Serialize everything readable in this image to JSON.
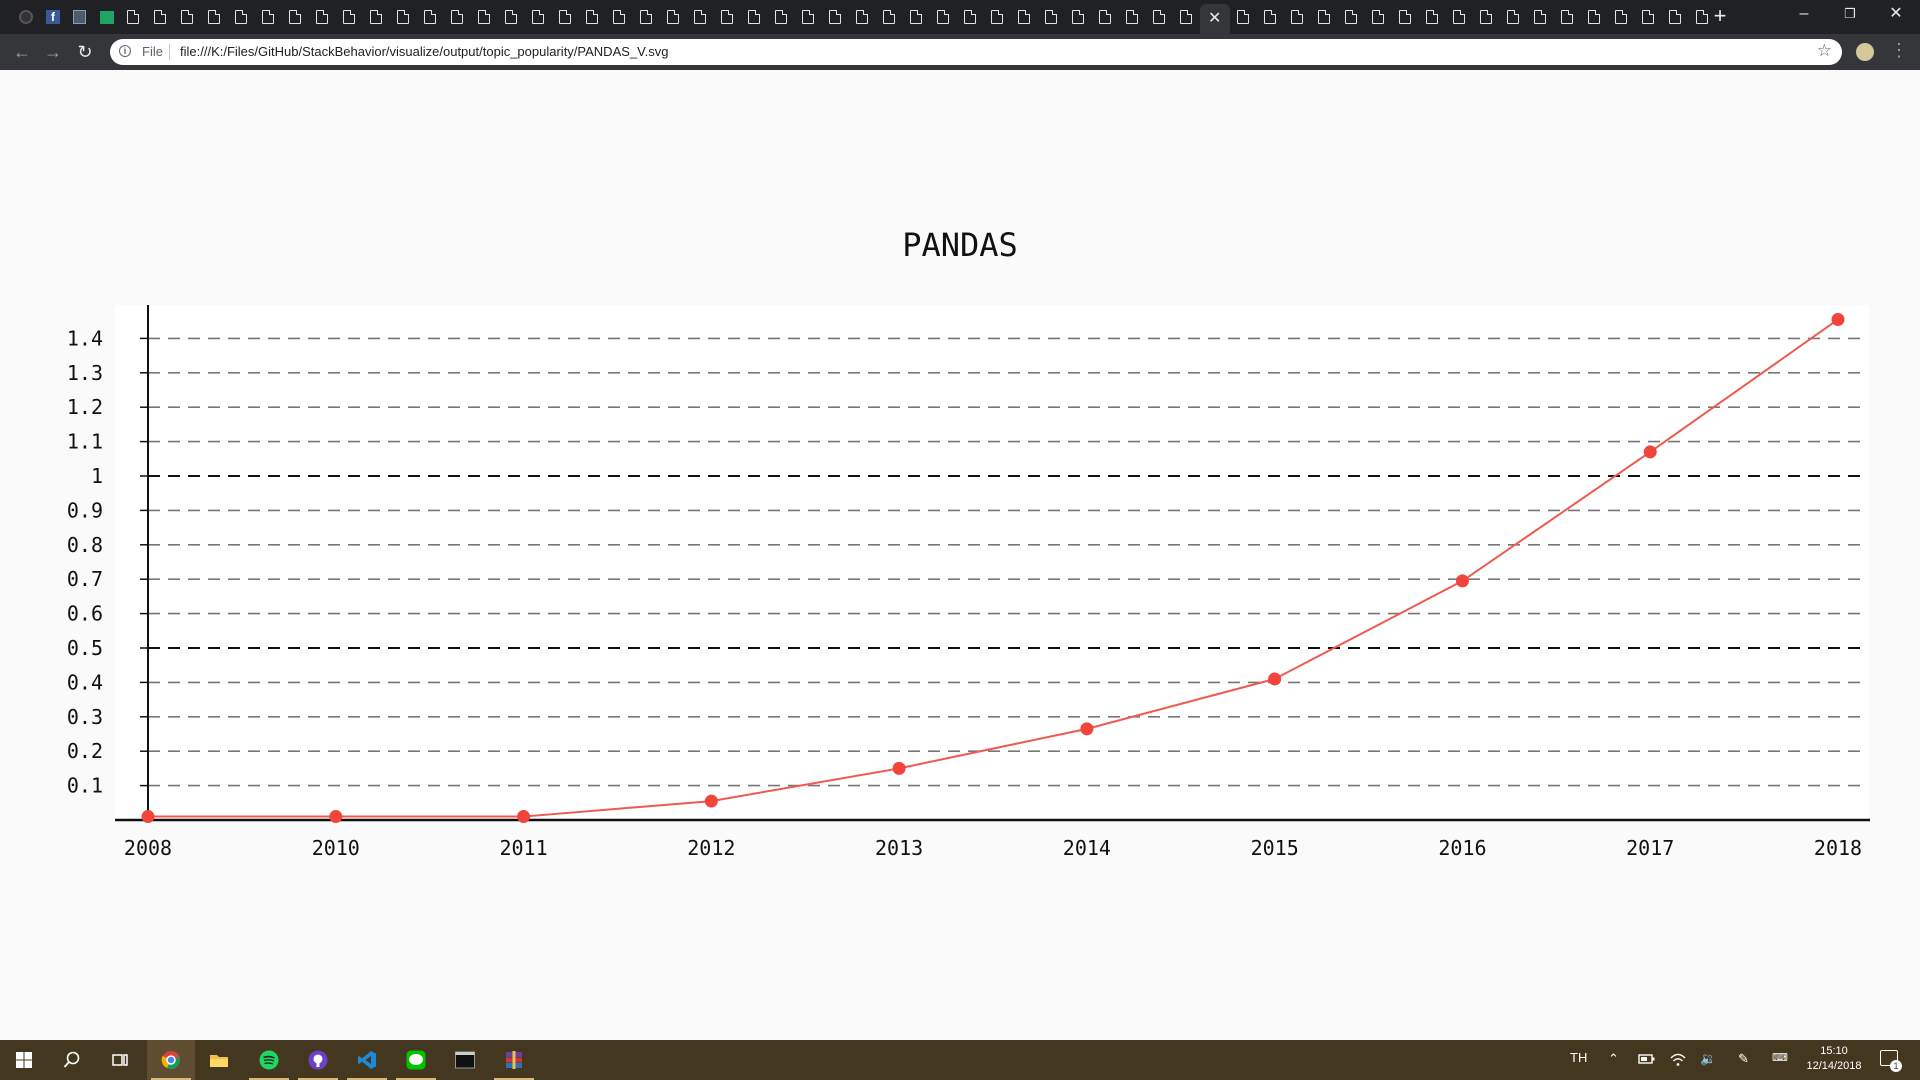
{
  "browser": {
    "url": "file:///K:/Files/GitHub/StackBehavior/visualize/output/topic_popularity/PANDAS_V.svg",
    "scheme_label": "File",
    "tabs": [
      "github",
      "facebook",
      "sheet",
      "green",
      "doc",
      "doc",
      "doc",
      "doc",
      "doc",
      "doc",
      "doc",
      "doc",
      "doc",
      "doc",
      "doc",
      "doc",
      "doc",
      "doc",
      "doc",
      "doc",
      "doc",
      "doc",
      "doc",
      "doc",
      "doc",
      "doc",
      "doc",
      "doc",
      "doc",
      "doc",
      "doc",
      "doc",
      "doc",
      "doc",
      "doc",
      "doc",
      "doc",
      "doc",
      "doc",
      "doc",
      "doc",
      "doc",
      "doc",
      "doc",
      "active",
      "doc",
      "doc",
      "doc",
      "doc",
      "doc",
      "doc",
      "doc",
      "doc",
      "doc",
      "doc",
      "doc",
      "doc",
      "doc",
      "doc",
      "doc",
      "doc",
      "doc",
      "doc"
    ]
  },
  "chart_data": {
    "type": "line",
    "title": "PANDAS",
    "categories": [
      "2008",
      "2010",
      "2011",
      "2012",
      "2013",
      "2014",
      "2015",
      "2016",
      "2017",
      "2018"
    ],
    "values": [
      0.01,
      0.01,
      0.01,
      0.055,
      0.15,
      0.265,
      0.41,
      0.695,
      1.07,
      1.455
    ],
    "yticks": [
      "0.1",
      "0.2",
      "0.3",
      "0.4",
      "0.5",
      "0.6",
      "0.7",
      "0.8",
      "0.9",
      "1",
      "1.1",
      "1.2",
      "1.3",
      "1.4"
    ],
    "ylim": [
      0,
      1.5
    ],
    "grid": true,
    "line_color": "#ef5a50",
    "marker_color": "#f2443a",
    "emphasized_gridlines": [
      0.5,
      1
    ]
  },
  "taskbar": {
    "apps": [
      "windows-start-icon",
      "search-icon",
      "task-view-icon",
      "chrome-icon",
      "file-explorer-icon",
      "spotify-icon",
      "github-desktop-icon",
      "vscode-icon",
      "line-icon",
      "terminal-icon",
      "winrar-icon"
    ],
    "language": "TH",
    "time": "15:10",
    "date": "12/14/2018",
    "notification_count": "1"
  }
}
